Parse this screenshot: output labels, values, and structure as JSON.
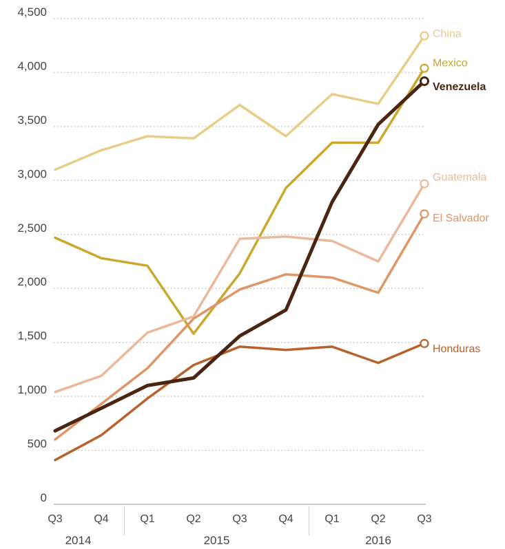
{
  "chart_data": {
    "type": "line",
    "title": "",
    "xlabel": "",
    "ylabel": "",
    "categories": [
      "Q3",
      "Q4",
      "Q1",
      "Q2",
      "Q3",
      "Q4",
      "Q1",
      "Q2",
      "Q3"
    ],
    "year_labels": [
      {
        "label": "2014",
        "from": 0,
        "to": 1
      },
      {
        "label": "2015",
        "from": 2,
        "to": 5
      },
      {
        "label": "2016",
        "from": 6,
        "to": 8
      }
    ],
    "ylim": [
      0,
      4500
    ],
    "yticks": [
      0,
      500,
      1000,
      1500,
      2000,
      2500,
      3000,
      3500,
      4000,
      4500
    ],
    "ytick_labels": [
      "0",
      "500",
      "1,000",
      "1,500",
      "2,000",
      "2,500",
      "3,000",
      "3,500",
      "4,000",
      "4,500"
    ],
    "grid": "horizontal dotted",
    "series": [
      {
        "name": "China",
        "color": "#e7cd85",
        "bold": false,
        "values": [
          3100,
          3280,
          3410,
          3390,
          3700,
          3410,
          3800,
          3710,
          4340
        ]
      },
      {
        "name": "Mexico",
        "color": "#c9a82c",
        "bold": false,
        "values": [
          2470,
          2280,
          2210,
          1580,
          2140,
          2930,
          3350,
          3350,
          4040
        ]
      },
      {
        "name": "Guatemala",
        "color": "#ebb99a",
        "bold": false,
        "values": [
          1040,
          1190,
          1590,
          1740,
          2460,
          2480,
          2440,
          2250,
          2970
        ]
      },
      {
        "name": "El Salvador",
        "color": "#e09567",
        "bold": false,
        "values": [
          600,
          930,
          1260,
          1720,
          1990,
          2130,
          2100,
          1960,
          2690
        ]
      },
      {
        "name": "Honduras",
        "color": "#b9612b",
        "bold": false,
        "values": [
          410,
          640,
          980,
          1290,
          1460,
          1430,
          1460,
          1310,
          1490
        ]
      },
      {
        "name": "Venezuela",
        "color": "#4a2612",
        "bold": true,
        "values": [
          680,
          890,
          1100,
          1170,
          1560,
          1800,
          2800,
          3520,
          3920
        ]
      }
    ],
    "label_y": {
      "China": 4360,
      "Mexico": 4090,
      "Venezuela": 3870,
      "Guatemala": 3030,
      "El Salvador": 2650,
      "Honduras": 1440
    }
  }
}
